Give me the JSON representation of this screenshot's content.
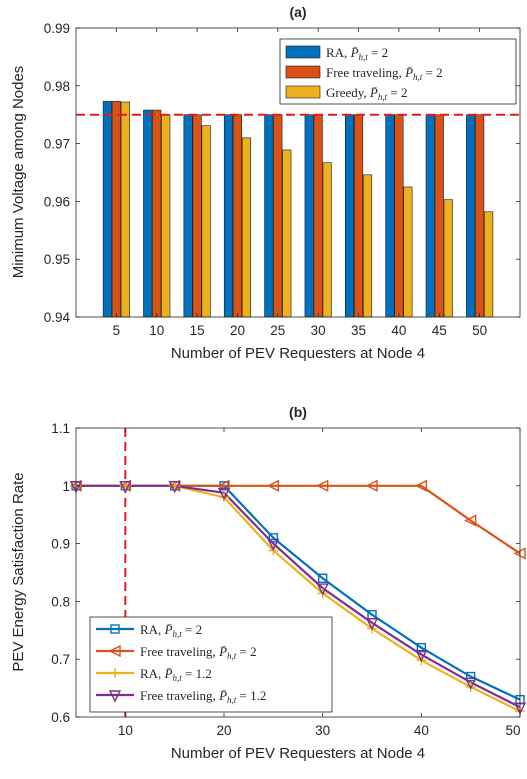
{
  "chart_data": [
    {
      "type": "bar",
      "title": "(a)",
      "xlabel": "Number of PEV Requesters at Node 4",
      "ylabel": "Minimum Voltage among Nodes",
      "categories": [
        "5",
        "10",
        "15",
        "20",
        "25",
        "30",
        "35",
        "40",
        "45",
        "50"
      ],
      "ylim": [
        0.94,
        0.99
      ],
      "yticks": [
        "0.94",
        "0.95",
        "0.96",
        "0.97",
        "0.98",
        "0.99"
      ],
      "grid": false,
      "legend_position": "top-right",
      "reference_line": {
        "y": 0.975,
        "style": "dashed",
        "color": "#e8191b"
      },
      "series": [
        {
          "name": "RA, P̄_{h,t} = 2",
          "color": "#0072bd",
          "values": [
            0.9773,
            0.9758,
            0.975,
            0.975,
            0.975,
            0.975,
            0.975,
            0.975,
            0.975,
            0.975
          ]
        },
        {
          "name": "Free traveling, P̄_{h,t} = 2",
          "color": "#d95319",
          "values": [
            0.9773,
            0.9758,
            0.975,
            0.975,
            0.975,
            0.975,
            0.975,
            0.975,
            0.975,
            0.975
          ]
        },
        {
          "name": "Greedy, P̄_{h,t} = 2",
          "color": "#edb120",
          "values": [
            0.9772,
            0.975,
            0.9731,
            0.971,
            0.9689,
            0.9667,
            0.9646,
            0.9625,
            0.9603,
            0.9582
          ]
        }
      ]
    },
    {
      "type": "line",
      "title": "(b)",
      "xlabel": "Number of PEV Requesters at Node 4",
      "ylabel": "PEV Energy Satisfaction Rate",
      "xlim": [
        5,
        50
      ],
      "ylim": [
        0.6,
        1.1
      ],
      "xticks": [
        "10",
        "20",
        "30",
        "40",
        "50"
      ],
      "yticks": [
        "0.6",
        "0.7",
        "0.8",
        "0.9",
        "1",
        "1.1"
      ],
      "grid": false,
      "legend_position": "bottom-left",
      "reference_line": {
        "x": 10,
        "style": "dashed",
        "color": "#e8191b"
      },
      "x": [
        5,
        10,
        15,
        20,
        25,
        30,
        35,
        40,
        45,
        50
      ],
      "series": [
        {
          "name": "RA, P̄_{h,t} = 2",
          "color": "#0072bd",
          "marker": "square",
          "values": [
            1,
            1,
            1,
            1,
            0.91,
            0.84,
            0.777,
            0.72,
            0.67,
            0.63
          ]
        },
        {
          "name": "Free traveling, P̄_{h,t} = 2",
          "color": "#d95319",
          "marker": "triangle-left",
          "values": [
            1,
            1,
            1,
            1,
            1,
            1,
            1,
            1,
            0.94,
            0.883
          ]
        },
        {
          "name": "RA, P̄_{h,t} = 1.2",
          "color": "#edb120",
          "marker": "plus",
          "values": [
            1,
            1,
            1,
            0.98,
            0.888,
            0.814,
            0.753,
            0.698,
            0.652,
            0.61
          ]
        },
        {
          "name": "Free traveling, P̄_{h,t} = 1.2",
          "color": "#7e2f8e",
          "marker": "triangle-down",
          "values": [
            1,
            1,
            1,
            0.988,
            0.9,
            0.823,
            0.763,
            0.708,
            0.66,
            0.617
          ]
        }
      ]
    }
  ]
}
